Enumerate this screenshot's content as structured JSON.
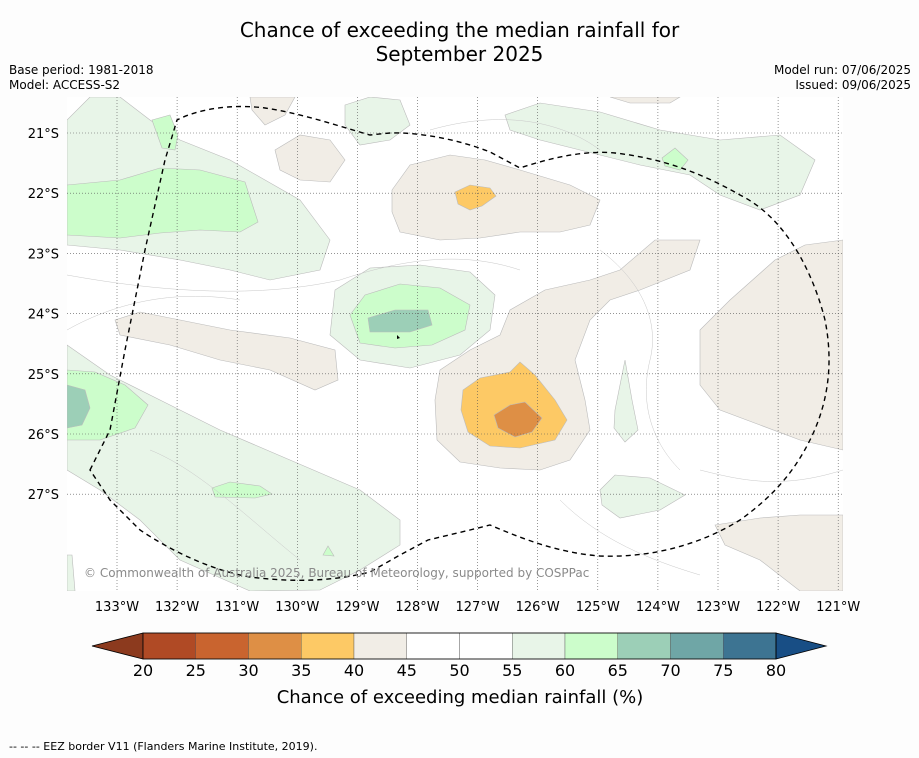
{
  "header": {
    "title_line1": "Chance of exceeding the median rainfall for",
    "title_line2": "September 2025",
    "base_period": "Base period: 1981-2018",
    "model": "Model: ACCESS-S2",
    "model_run": "Model run: 07/06/2025",
    "issued": "Issued: 09/06/2025"
  },
  "map": {
    "copyright": "© Commonwealth of Australia 2025, Bureau of Meteorology, supported by COSPPac",
    "lon_labels": [
      "133°W",
      "132°W",
      "131°W",
      "130°W",
      "129°W",
      "128°W",
      "127°W",
      "126°W",
      "125°W",
      "124°W",
      "123°W",
      "122°W",
      "121°W"
    ],
    "lat_labels": [
      "21°S",
      "22°S",
      "23°S",
      "24°S",
      "25°S",
      "26°S",
      "27°S"
    ],
    "lon_values": [
      -133,
      -132,
      -131,
      -130,
      -129,
      -128,
      -127,
      -126,
      -125,
      -124,
      -123,
      -122,
      -121
    ],
    "lat_values": [
      -21,
      -22,
      -23,
      -24,
      -25,
      -26,
      -27
    ]
  },
  "colorbar": {
    "ticks": [
      "20",
      "25",
      "30",
      "35",
      "40",
      "45",
      "50",
      "55",
      "60",
      "65",
      "70",
      "75",
      "80"
    ],
    "label": "Chance of exceeding median rainfall (%)",
    "colors": [
      "#8c3a1e",
      "#b04a25",
      "#c9642f",
      "#de8f45",
      "#fdc965",
      "#f1ede6",
      "#ffffff",
      "#ffffff",
      "#e8f5e8",
      "#ccfdcb",
      "#9ccfb7",
      "#6fa6a6",
      "#3d7492",
      "#184e85"
    ]
  },
  "footer": {
    "legend": "--  --  -- EEZ border V11 (Flanders Marine Institute, 2019)."
  }
}
